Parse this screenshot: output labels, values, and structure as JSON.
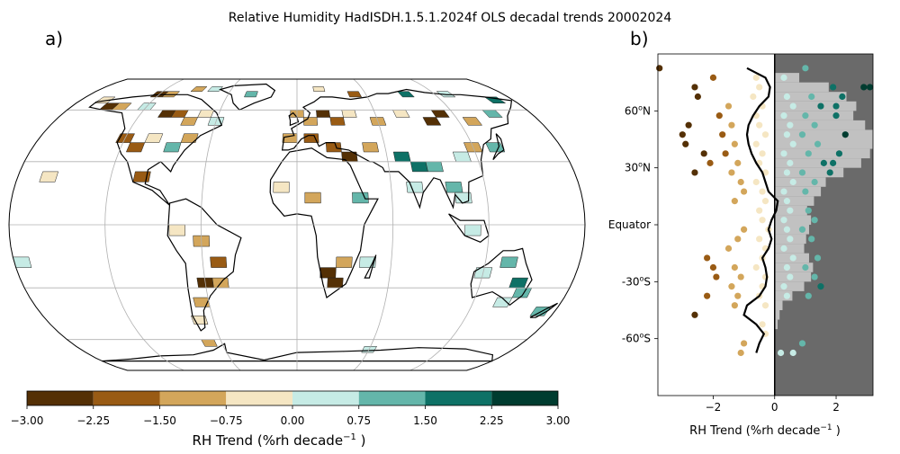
{
  "figure": {
    "title": "Relative Humidity HadISDH.1.5.1.2024f OLS decadal trends 20002024",
    "panel_a_label": "a)",
    "panel_b_label": "b)"
  },
  "colors": {
    "palette": [
      "#543005",
      "#995b14",
      "#d3a65b",
      "#f5e6c3",
      "#c6ebe5",
      "#64b6aa",
      "#0e7166",
      "#003c30"
    ],
    "land_grey": "#c1c1c1",
    "positive_bg": "#6a6a6a",
    "line": "#000000"
  },
  "chart_data": [
    {
      "type": "heatmap",
      "panel": "a)",
      "projection": "robinson",
      "colorbar": {
        "label": "RH Trend (%rh decade$^{-1}$ )",
        "label_main": "RH Trend (%rh decade",
        "label_sup": "−1",
        "label_end": " )",
        "boundaries": [
          -3.0,
          -2.25,
          -1.5,
          -0.75,
          0.0,
          0.75,
          1.5,
          2.25,
          3.0
        ],
        "tick_labels": [
          "−3.00",
          "−2.25",
          "−1.50",
          "−0.75",
          "0.00",
          "0.75",
          "1.50",
          "2.25",
          "3.00"
        ]
      },
      "cells": [
        {
          "lon": -120,
          "lat": 72.5,
          "v": -2.6
        },
        {
          "lon": -110,
          "lat": 72.5,
          "v": -1.0
        },
        {
          "lon": -90,
          "lat": 77.5,
          "v": -1.2
        },
        {
          "lon": -75,
          "lat": 77.5,
          "v": 0.4
        },
        {
          "lon": -40,
          "lat": 72.5,
          "v": 0.9
        },
        {
          "lon": 20,
          "lat": 77.5,
          "v": -0.4
        },
        {
          "lon": 50,
          "lat": 72.5,
          "v": -1.6
        },
        {
          "lon": 95,
          "lat": 72.5,
          "v": 1.8
        },
        {
          "lon": 130,
          "lat": 72.5,
          "v": 0.3
        },
        {
          "lon": 165,
          "lat": 67.5,
          "v": 1.9
        },
        {
          "lon": -160,
          "lat": 67.5,
          "v": -0.5
        },
        {
          "lon": -150,
          "lat": 62.5,
          "v": -2.8
        },
        {
          "lon": -140,
          "lat": 62.5,
          "v": -1.2
        },
        {
          "lon": -120,
          "lat": 62.5,
          "v": 0.5
        },
        {
          "lon": -100,
          "lat": 57.5,
          "v": -2.5
        },
        {
          "lon": -90,
          "lat": 57.5,
          "v": -2.0
        },
        {
          "lon": -80,
          "lat": 52.5,
          "v": -1.4
        },
        {
          "lon": -70,
          "lat": 57.5,
          "v": -0.6
        },
        {
          "lon": -60,
          "lat": 52.5,
          "v": 0.4
        },
        {
          "lon": 0,
          "lat": 57.5,
          "v": -1.3
        },
        {
          "lon": 10,
          "lat": 52.5,
          "v": -1.0
        },
        {
          "lon": 20,
          "lat": 57.5,
          "v": -2.4
        },
        {
          "lon": 30,
          "lat": 52.5,
          "v": -1.8
        },
        {
          "lon": 40,
          "lat": 57.5,
          "v": -0.7
        },
        {
          "lon": 60,
          "lat": 52.5,
          "v": -1.1
        },
        {
          "lon": 80,
          "lat": 57.5,
          "v": -0.6
        },
        {
          "lon": 100,
          "lat": 52.5,
          "v": -2.7
        },
        {
          "lon": 110,
          "lat": 57.5,
          "v": -2.3
        },
        {
          "lon": 130,
          "lat": 52.5,
          "v": -0.9
        },
        {
          "lon": 150,
          "lat": 57.5,
          "v": 0.9
        },
        {
          "lon": -120,
          "lat": 42.5,
          "v": -1.6
        },
        {
          "lon": -110,
          "lat": 37.5,
          "v": -2.2
        },
        {
          "lon": -100,
          "lat": 42.5,
          "v": -0.5
        },
        {
          "lon": -85,
          "lat": 37.5,
          "v": 0.8
        },
        {
          "lon": -75,
          "lat": 42.5,
          "v": -1.3
        },
        {
          "lon": -5,
          "lat": 42.5,
          "v": -1.5
        },
        {
          "lon": 10,
          "lat": 42.5,
          "v": -2.0
        },
        {
          "lon": 25,
          "lat": 37.5,
          "v": -1.7
        },
        {
          "lon": 35,
          "lat": 32.5,
          "v": -2.3
        },
        {
          "lon": 50,
          "lat": 37.5,
          "v": -1.4
        },
        {
          "lon": 70,
          "lat": 32.5,
          "v": 1.7
        },
        {
          "lon": 80,
          "lat": 27.5,
          "v": 2.0
        },
        {
          "lon": 90,
          "lat": 27.5,
          "v": 1.0
        },
        {
          "lon": 110,
          "lat": 32.5,
          "v": 0.5
        },
        {
          "lon": 120,
          "lat": 37.5,
          "v": -0.8
        },
        {
          "lon": 135,
          "lat": 37.5,
          "v": 1.2
        },
        {
          "lon": -100,
          "lat": 22.5,
          "v": -1.9
        },
        {
          "lon": -160,
          "lat": 22.5,
          "v": -0.4
        },
        {
          "lon": -10,
          "lat": 17.5,
          "v": -0.6
        },
        {
          "lon": 10,
          "lat": 12.5,
          "v": -1.5
        },
        {
          "lon": 40,
          "lat": 12.5,
          "v": 0.9
        },
        {
          "lon": 75,
          "lat": 17.5,
          "v": 0.4
        },
        {
          "lon": 100,
          "lat": 17.5,
          "v": 1.1
        },
        {
          "lon": 105,
          "lat": 12.5,
          "v": 0.6
        },
        {
          "lon": -75,
          "lat": -2.5,
          "v": -0.3
        },
        {
          "lon": -60,
          "lat": -7.5,
          "v": -1.1
        },
        {
          "lon": 110,
          "lat": -2.5,
          "v": 0.5
        },
        {
          "lon": -50,
          "lat": -17.5,
          "v": -1.6
        },
        {
          "lon": -60,
          "lat": -27.5,
          "v": -2.6
        },
        {
          "lon": -50,
          "lat": -27.5,
          "v": -1.0
        },
        {
          "lon": -65,
          "lat": -37.5,
          "v": -1.5
        },
        {
          "lon": -70,
          "lat": -47.5,
          "v": -0.3
        },
        {
          "lon": 20,
          "lat": -22.5,
          "v": -2.4
        },
        {
          "lon": 25,
          "lat": -27.5,
          "v": -2.9
        },
        {
          "lon": 30,
          "lat": -17.5,
          "v": -1.3
        },
        {
          "lon": 45,
          "lat": -17.5,
          "v": 0.5
        },
        {
          "lon": 120,
          "lat": -22.5,
          "v": 0.3
        },
        {
          "lon": 135,
          "lat": -17.5,
          "v": 0.8
        },
        {
          "lon": 145,
          "lat": -27.5,
          "v": 1.8
        },
        {
          "lon": 150,
          "lat": -32.5,
          "v": 1.1
        },
        {
          "lon": 140,
          "lat": -37.5,
          "v": 0.4
        },
        {
          "lon": 170,
          "lat": -42.5,
          "v": 1.3
        },
        {
          "lon": -175,
          "lat": -17.5,
          "v": 0.5
        },
        {
          "lon": -70,
          "lat": -62.5,
          "v": -1.2
        },
        {
          "lon": 60,
          "lat": -67.5,
          "v": 0.7
        }
      ]
    },
    {
      "type": "scatter",
      "panel": "b)",
      "xlabel": "RH Trend (%rh decade$^{-1}$ )",
      "xlabel_main": "RH Trend (%rh decade",
      "xlabel_sup": "−1",
      "xlabel_end": " )",
      "xlim": [
        -3.8,
        3.2
      ],
      "ylim": [
        -90,
        90
      ],
      "xticks": [
        -2,
        0,
        2
      ],
      "xtick_labels": [
        "−2",
        "0",
        "2"
      ],
      "yticks": [
        60,
        30,
        0,
        -30,
        -60
      ],
      "ytick_labels": [
        {
          "main": "60",
          "sup": "o",
          "end": "N"
        },
        {
          "main": "30",
          "sup": "o",
          "end": "N"
        },
        {
          "main": "Equator",
          "sup": "",
          "end": ""
        },
        {
          "main": "-30",
          "sup": "o",
          "end": "S"
        },
        {
          "main": "-60",
          "sup": "o",
          "end": "S"
        }
      ],
      "land_fraction_profile": [
        {
          "lat": 82.5,
          "w": 0.0
        },
        {
          "lat": 77.5,
          "w": 0.25
        },
        {
          "lat": 72.5,
          "w": 0.55
        },
        {
          "lat": 67.5,
          "w": 0.73
        },
        {
          "lat": 62.5,
          "w": 0.83
        },
        {
          "lat": 57.5,
          "w": 0.8
        },
        {
          "lat": 52.5,
          "w": 0.92
        },
        {
          "lat": 47.5,
          "w": 1.0
        },
        {
          "lat": 42.5,
          "w": 1.0
        },
        {
          "lat": 37.5,
          "w": 0.97
        },
        {
          "lat": 32.5,
          "w": 0.88
        },
        {
          "lat": 27.5,
          "w": 0.7
        },
        {
          "lat": 22.5,
          "w": 0.52
        },
        {
          "lat": 17.5,
          "w": 0.47
        },
        {
          "lat": 12.5,
          "w": 0.4
        },
        {
          "lat": 7.5,
          "w": 0.33
        },
        {
          "lat": 2.5,
          "w": 0.37
        },
        {
          "lat": -2.5,
          "w": 0.35
        },
        {
          "lat": -7.5,
          "w": 0.32
        },
        {
          "lat": -12.5,
          "w": 0.3
        },
        {
          "lat": -17.5,
          "w": 0.35
        },
        {
          "lat": -22.5,
          "w": 0.39
        },
        {
          "lat": -27.5,
          "w": 0.37
        },
        {
          "lat": -32.5,
          "w": 0.3
        },
        {
          "lat": -37.5,
          "w": 0.18
        },
        {
          "lat": -42.5,
          "w": 0.08
        },
        {
          "lat": -47.5,
          "w": 0.05
        },
        {
          "lat": -52.5,
          "w": 0.03
        },
        {
          "lat": -57.5,
          "w": 0.0
        }
      ],
      "mean_trend_profile": [
        {
          "lat": 82.5,
          "x": -0.9
        },
        {
          "lat": 77.5,
          "x": -0.3
        },
        {
          "lat": 72.5,
          "x": -0.15
        },
        {
          "lat": 67.5,
          "x": -0.2
        },
        {
          "lat": 62.5,
          "x": -0.5
        },
        {
          "lat": 57.5,
          "x": -0.7
        },
        {
          "lat": 52.5,
          "x": -0.85
        },
        {
          "lat": 47.5,
          "x": -0.9
        },
        {
          "lat": 42.5,
          "x": -0.85
        },
        {
          "lat": 37.5,
          "x": -0.75
        },
        {
          "lat": 32.5,
          "x": -0.6
        },
        {
          "lat": 27.5,
          "x": -0.4
        },
        {
          "lat": 22.5,
          "x": -0.3
        },
        {
          "lat": 17.5,
          "x": -0.2
        },
        {
          "lat": 12.5,
          "x": 0.1
        },
        {
          "lat": 7.5,
          "x": 0.05
        },
        {
          "lat": 2.5,
          "x": -0.1
        },
        {
          "lat": -2.5,
          "x": -0.2
        },
        {
          "lat": -7.5,
          "x": -0.1
        },
        {
          "lat": -12.5,
          "x": -0.2
        },
        {
          "lat": -17.5,
          "x": -0.4
        },
        {
          "lat": -22.5,
          "x": -0.3
        },
        {
          "lat": -27.5,
          "x": -0.25
        },
        {
          "lat": -32.5,
          "x": -0.3
        },
        {
          "lat": -37.5,
          "x": -0.5
        },
        {
          "lat": -42.5,
          "x": -0.9
        },
        {
          "lat": -47.5,
          "x": -1.0
        },
        {
          "lat": -52.5,
          "x": -0.6
        },
        {
          "lat": -57.5,
          "x": -0.35
        },
        {
          "lat": -62.5,
          "x": -0.5
        },
        {
          "lat": -67.5,
          "x": -0.6
        }
      ],
      "points": [
        [
          -3.75,
          82.5
        ],
        [
          -2.6,
          72.5
        ],
        [
          -2.0,
          77.5
        ],
        [
          -2.5,
          67.5
        ],
        [
          -3.0,
          47.5
        ],
        [
          -2.8,
          52.5
        ],
        [
          -2.3,
          37.5
        ],
        [
          -2.9,
          42.5
        ],
        [
          -2.1,
          32.5
        ],
        [
          -2.6,
          27.5
        ],
        [
          -2.2,
          -17.5
        ],
        [
          -2.0,
          -22.5
        ],
        [
          -1.9,
          -27.5
        ],
        [
          -2.6,
          -47.5
        ],
        [
          -2.2,
          -37.5
        ],
        [
          -1.5,
          62.5
        ],
        [
          -1.8,
          57.5
        ],
        [
          -1.4,
          52.5
        ],
        [
          -1.7,
          47.5
        ],
        [
          -1.3,
          42.5
        ],
        [
          -1.6,
          37.5
        ],
        [
          -1.2,
          32.5
        ],
        [
          -1.4,
          27.5
        ],
        [
          -1.1,
          22.5
        ],
        [
          -1.0,
          17.5
        ],
        [
          -1.3,
          12.5
        ],
        [
          -1.0,
          -2.5
        ],
        [
          -1.2,
          -7.5
        ],
        [
          -1.5,
          -12.5
        ],
        [
          -1.3,
          -22.5
        ],
        [
          -1.1,
          -27.5
        ],
        [
          -1.4,
          -32.5
        ],
        [
          -1.2,
          -37.5
        ],
        [
          -1.3,
          -42.5
        ],
        [
          -1.1,
          -67.5
        ],
        [
          -1.0,
          -62.5
        ],
        [
          -0.6,
          77.5
        ],
        [
          -0.5,
          72.5
        ],
        [
          -0.7,
          67.5
        ],
        [
          -0.4,
          62.5
        ],
        [
          -0.6,
          57.5
        ],
        [
          -0.5,
          52.5
        ],
        [
          -0.3,
          47.5
        ],
        [
          -0.6,
          42.5
        ],
        [
          -0.4,
          37.5
        ],
        [
          -0.5,
          32.5
        ],
        [
          -0.3,
          27.5
        ],
        [
          -0.6,
          22.5
        ],
        [
          -0.4,
          17.5
        ],
        [
          -0.3,
          12.5
        ],
        [
          -0.5,
          7.5
        ],
        [
          -0.4,
          2.5
        ],
        [
          -0.2,
          -2.5
        ],
        [
          -0.5,
          -7.5
        ],
        [
          -0.3,
          -12.5
        ],
        [
          -0.4,
          -17.5
        ],
        [
          -0.6,
          -22.5
        ],
        [
          -0.3,
          -27.5
        ],
        [
          -0.4,
          -32.5
        ],
        [
          -0.5,
          -37.5
        ],
        [
          -0.3,
          -42.5
        ],
        [
          -0.4,
          -52.5
        ],
        [
          -0.3,
          -57.5
        ],
        [
          0.3,
          77.5
        ],
        [
          0.4,
          67.5
        ],
        [
          0.6,
          62.5
        ],
        [
          0.3,
          57.5
        ],
        [
          0.5,
          52.5
        ],
        [
          0.4,
          47.5
        ],
        [
          0.6,
          42.5
        ],
        [
          0.3,
          37.5
        ],
        [
          0.5,
          32.5
        ],
        [
          0.4,
          27.5
        ],
        [
          0.6,
          22.5
        ],
        [
          0.3,
          17.5
        ],
        [
          0.4,
          12.5
        ],
        [
          0.5,
          7.5
        ],
        [
          0.3,
          2.5
        ],
        [
          0.4,
          -2.5
        ],
        [
          0.5,
          -7.5
        ],
        [
          0.3,
          -12.5
        ],
        [
          0.6,
          -17.5
        ],
        [
          0.4,
          -22.5
        ],
        [
          0.5,
          -27.5
        ],
        [
          0.3,
          -32.5
        ],
        [
          0.4,
          -37.5
        ],
        [
          0.2,
          -67.5
        ],
        [
          0.6,
          -67.5
        ],
        [
          1.2,
          67.5
        ],
        [
          1.5,
          62.5
        ],
        [
          1.0,
          57.5
        ],
        [
          1.3,
          52.5
        ],
        [
          0.9,
          47.5
        ],
        [
          1.4,
          42.5
        ],
        [
          1.1,
          37.5
        ],
        [
          1.6,
          32.5
        ],
        [
          0.9,
          27.5
        ],
        [
          1.3,
          22.5
        ],
        [
          1.0,
          17.5
        ],
        [
          1.1,
          7.5
        ],
        [
          1.3,
          2.5
        ],
        [
          0.9,
          -2.5
        ],
        [
          1.2,
          -7.5
        ],
        [
          1.4,
          -17.5
        ],
        [
          1.0,
          -22.5
        ],
        [
          1.3,
          -27.5
        ],
        [
          1.5,
          -32.5
        ],
        [
          1.1,
          -37.5
        ],
        [
          0.9,
          -62.5
        ],
        [
          1.9,
          72.5
        ],
        [
          2.2,
          67.5
        ],
        [
          2.0,
          57.5
        ],
        [
          2.3,
          47.5
        ],
        [
          2.1,
          37.5
        ],
        [
          1.9,
          32.5
        ],
        [
          1.8,
          27.5
        ],
        [
          2.0,
          62.5
        ],
        [
          1.0,
          82.5
        ],
        [
          2.9,
          72.5
        ],
        [
          3.1,
          72.5
        ]
      ]
    }
  ]
}
